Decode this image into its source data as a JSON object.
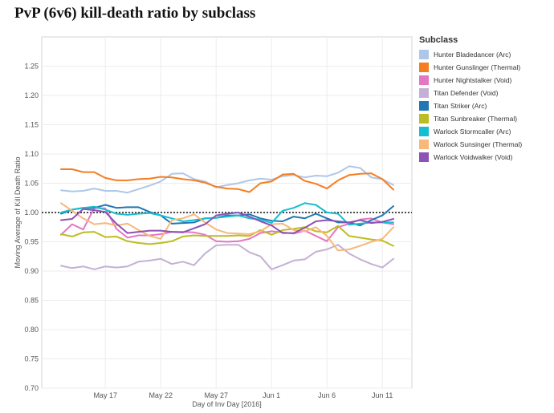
{
  "chart_data": {
    "type": "line",
    "title": "PvP (6v6) kill-death ratio by subclass",
    "xlabel": "Day of Inv Day [2016]",
    "ylabel": "Moving Average of Kill Death Ratio",
    "ylim": [
      0.7,
      1.3
    ],
    "y_ticks": [
      "1.25",
      "1.20",
      "1.15",
      "1.10",
      "1.05",
      "1.00",
      "0.95",
      "0.90",
      "0.85",
      "0.80",
      "0.75",
      "0.70"
    ],
    "x_start": "May 13",
    "x_days": 31,
    "x_ticks": [
      {
        "label": "May 17",
        "day": 4
      },
      {
        "label": "May 22",
        "day": 9
      },
      {
        "label": "May 27",
        "day": 14
      },
      {
        "label": "Jun 1",
        "day": 19
      },
      {
        "label": "Jun 6",
        "day": 24
      },
      {
        "label": "Jun 11",
        "day": 29
      }
    ],
    "reference_line": 1.0,
    "legend_title": "Subclass",
    "series": [
      {
        "name": "Hunter Bladedancer (Arc)",
        "color": "#aec7e8",
        "values": [
          1.038,
          1.036,
          1.037,
          1.041,
          1.037,
          1.037,
          1.034,
          1.04,
          1.046,
          1.053,
          1.066,
          1.067,
          1.057,
          1.053,
          1.043,
          1.047,
          1.05,
          1.055,
          1.058,
          1.056,
          1.062,
          1.064,
          1.06,
          1.063,
          1.062,
          1.068,
          1.079,
          1.076,
          1.06,
          1.057,
          1.047
        ]
      },
      {
        "name": "Hunter Gunslinger (Thermal)",
        "color": "#f47e21",
        "values": [
          1.074,
          1.074,
          1.069,
          1.069,
          1.059,
          1.055,
          1.055,
          1.057,
          1.058,
          1.061,
          1.06,
          1.057,
          1.055,
          1.051,
          1.044,
          1.041,
          1.04,
          1.035,
          1.05,
          1.053,
          1.065,
          1.066,
          1.054,
          1.049,
          1.041,
          1.055,
          1.064,
          1.066,
          1.067,
          1.057,
          1.039
        ]
      },
      {
        "name": "Hunter Nightstalker (Void)",
        "color": "#e377c2",
        "values": [
          0.962,
          0.98,
          0.971,
          1.008,
          1.007,
          0.972,
          0.957,
          0.961,
          0.961,
          0.963,
          0.967,
          0.967,
          0.966,
          0.962,
          0.951,
          0.95,
          0.951,
          0.955,
          0.965,
          0.968,
          0.966,
          0.964,
          0.969,
          0.96,
          0.951,
          0.975,
          0.981,
          0.988,
          0.99,
          0.983,
          0.98
        ]
      },
      {
        "name": "Titan Defender (Void)",
        "color": "#c5b0d5",
        "values": [
          0.909,
          0.905,
          0.908,
          0.903,
          0.908,
          0.906,
          0.908,
          0.916,
          0.918,
          0.921,
          0.912,
          0.916,
          0.91,
          0.93,
          0.944,
          0.945,
          0.945,
          0.932,
          0.925,
          0.903,
          0.91,
          0.918,
          0.92,
          0.933,
          0.937,
          0.945,
          0.93,
          0.92,
          0.912,
          0.906,
          0.921
        ]
      },
      {
        "name": "Titan Striker (Arc)",
        "color": "#1f77b4",
        "values": [
          0.998,
          1.005,
          1.008,
          1.008,
          1.013,
          1.008,
          1.009,
          1.009,
          1.001,
          0.995,
          0.981,
          0.982,
          0.983,
          0.99,
          0.991,
          0.995,
          0.995,
          0.997,
          0.99,
          0.986,
          0.985,
          0.993,
          0.99,
          0.998,
          0.99,
          0.983,
          0.983,
          0.978,
          0.987,
          0.995,
          1.011
        ]
      },
      {
        "name": "Titan Sunbreaker (Thermal)",
        "color": "#bcbd22",
        "values": [
          0.963,
          0.959,
          0.966,
          0.967,
          0.958,
          0.959,
          0.951,
          0.948,
          0.946,
          0.948,
          0.951,
          0.959,
          0.961,
          0.96,
          0.96,
          0.96,
          0.961,
          0.96,
          0.97,
          0.962,
          0.97,
          0.972,
          0.975,
          0.968,
          0.966,
          0.977,
          0.96,
          0.957,
          0.954,
          0.952,
          0.943
        ]
      },
      {
        "name": "Warlock Stormcaller (Arc)",
        "color": "#17becf",
        "values": [
          1.0,
          1.005,
          1.008,
          1.01,
          1.005,
          0.998,
          0.996,
          0.998,
          0.999,
          0.995,
          0.99,
          0.985,
          0.987,
          0.99,
          0.991,
          0.993,
          0.995,
          0.99,
          0.988,
          0.982,
          1.003,
          1.008,
          1.016,
          1.013,
          1.0,
          0.998,
          0.979,
          0.981,
          0.983,
          0.983,
          0.983
        ]
      },
      {
        "name": "Warlock Sunsinger (Thermal)",
        "color": "#f7b87a",
        "values": [
          1.016,
          1.003,
          0.99,
          0.98,
          0.982,
          0.978,
          0.981,
          0.97,
          0.96,
          0.955,
          0.987,
          0.99,
          0.997,
          0.983,
          0.971,
          0.965,
          0.964,
          0.963,
          0.968,
          0.98,
          0.981,
          0.97,
          0.968,
          0.975,
          0.96,
          0.935,
          0.937,
          0.943,
          0.95,
          0.955,
          0.975
        ]
      },
      {
        "name": "Warlock Voidwalker (Void)",
        "color": "#8c52b6",
        "values": [
          0.987,
          0.989,
          1.006,
          1.004,
          1.001,
          0.981,
          0.965,
          0.967,
          0.969,
          0.969,
          0.967,
          0.966,
          0.973,
          0.98,
          0.995,
          0.998,
          1.0,
          0.993,
          0.985,
          0.978,
          0.965,
          0.965,
          0.974,
          0.985,
          0.987,
          0.985,
          0.983,
          0.987,
          0.982,
          0.984,
          0.989
        ]
      }
    ]
  }
}
